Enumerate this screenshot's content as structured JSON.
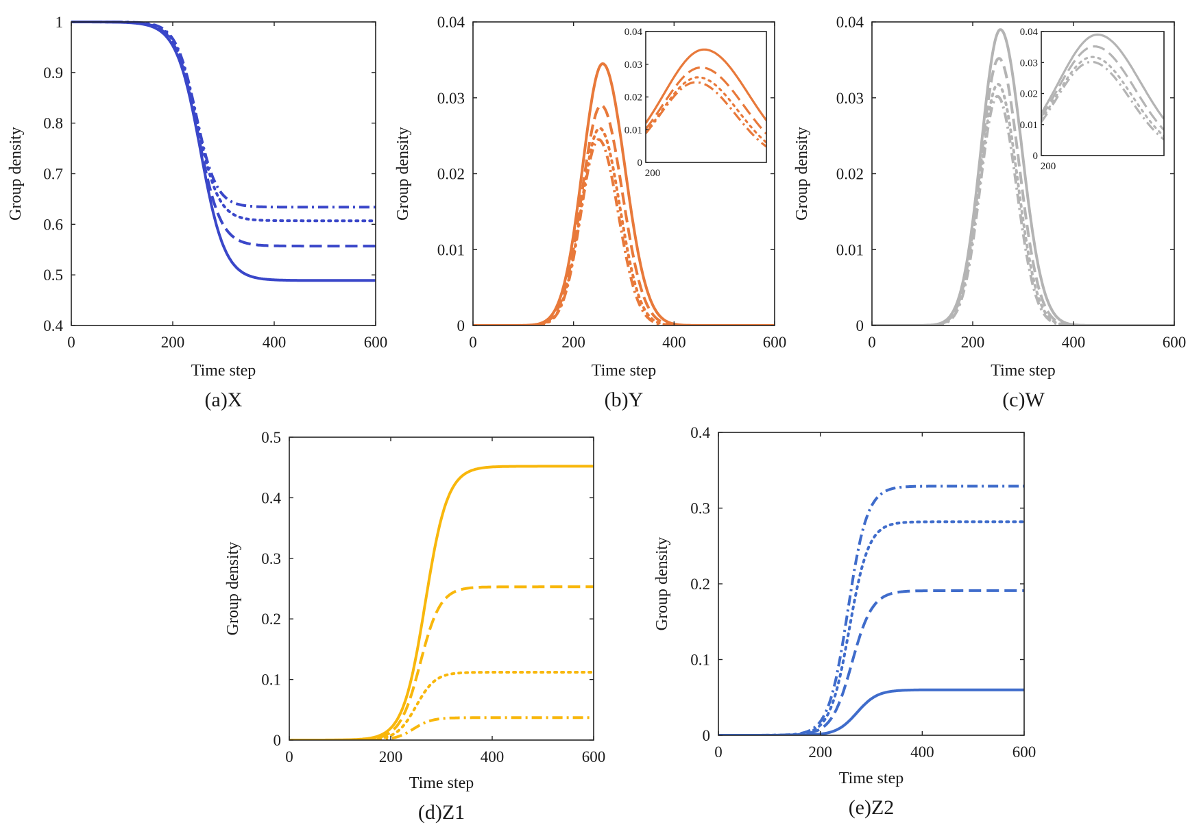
{
  "chart_data": [
    {
      "type": "line",
      "id": "a",
      "caption": "(a)X",
      "xlabel": "Time step",
      "ylabel": "Group density",
      "xlim": [
        0,
        600
      ],
      "ylim": [
        0.4,
        1.0
      ],
      "xticks": [
        "0",
        "200",
        "400",
        "600"
      ],
      "yticks": [
        "0.4",
        "0.5",
        "0.6",
        "0.7",
        "0.8",
        "0.9",
        "1"
      ],
      "color": "#3a47c9",
      "series": [
        {
          "name": "solid",
          "style": "solid",
          "kind": "decreasing",
          "start": 1.0,
          "final": 0.489,
          "midpoint": 255,
          "width": 24
        },
        {
          "name": "dashed",
          "style": "dashed",
          "kind": "decreasing",
          "start": 1.0,
          "final": 0.557,
          "midpoint": 250,
          "width": 22
        },
        {
          "name": "dotted",
          "style": "dotted",
          "kind": "decreasing",
          "start": 1.0,
          "final": 0.607,
          "midpoint": 248,
          "width": 21
        },
        {
          "name": "dashdot",
          "style": "dashdot",
          "kind": "decreasing",
          "start": 1.0,
          "final": 0.634,
          "midpoint": 246,
          "width": 20
        }
      ]
    },
    {
      "type": "line",
      "id": "b",
      "caption": "(b)Y",
      "xlabel": "Time step",
      "ylabel": "Group density",
      "xlim": [
        0,
        600
      ],
      "ylim": [
        0,
        0.04
      ],
      "xticks": [
        "0",
        "200",
        "400",
        "600"
      ],
      "yticks": [
        "0",
        "0.01",
        "0.02",
        "0.03",
        "0.04"
      ],
      "color": "#e8793a",
      "series": [
        {
          "name": "solid",
          "style": "solid",
          "kind": "peak",
          "peak": 0.0345,
          "at": 258,
          "width": 42
        },
        {
          "name": "dashed",
          "style": "dashed",
          "kind": "peak",
          "peak": 0.029,
          "at": 255,
          "width": 40
        },
        {
          "name": "dotted",
          "style": "dotted",
          "kind": "peak",
          "peak": 0.026,
          "at": 252,
          "width": 38
        },
        {
          "name": "dashdot",
          "style": "dashdot",
          "kind": "peak",
          "peak": 0.0245,
          "at": 250,
          "width": 37
        }
      ],
      "inset": {
        "xlim": [
          200,
          320
        ],
        "ylim": [
          0,
          0.04
        ],
        "xticks": [
          "200"
        ],
        "yticks": [
          "0",
          "0.01",
          "0.02",
          "0.03",
          "0.04"
        ]
      }
    },
    {
      "type": "line",
      "id": "c",
      "caption": "(c)W",
      "xlabel": "Time step",
      "ylabel": "Group density",
      "xlim": [
        0,
        600
      ],
      "ylim": [
        0,
        0.04
      ],
      "xticks": [
        "0",
        "200",
        "400",
        "600"
      ],
      "yticks": [
        "0",
        "0.01",
        "0.02",
        "0.03",
        "0.04"
      ],
      "color": "#b4b4b4",
      "series": [
        {
          "name": "solid",
          "style": "solid",
          "kind": "peak",
          "peak": 0.039,
          "at": 255,
          "width": 40
        },
        {
          "name": "dashed",
          "style": "dashed",
          "kind": "peak",
          "peak": 0.0352,
          "at": 252,
          "width": 38
        },
        {
          "name": "dotted",
          "style": "dotted",
          "kind": "peak",
          "peak": 0.0318,
          "at": 250,
          "width": 37
        },
        {
          "name": "dashdot",
          "style": "dashdot",
          "kind": "peak",
          "peak": 0.0302,
          "at": 249,
          "width": 36
        }
      ],
      "inset": {
        "xlim": [
          200,
          320
        ],
        "ylim": [
          0,
          0.04
        ],
        "xticks": [
          "200"
        ],
        "yticks": [
          "0",
          "0.01",
          "0.02",
          "0.03",
          "0.04"
        ]
      }
    },
    {
      "type": "line",
      "id": "d",
      "caption": "(d)Z1",
      "xlabel": "Time step",
      "ylabel": "Group density",
      "xlim": [
        0,
        600
      ],
      "ylim": [
        0,
        0.5
      ],
      "xticks": [
        "0",
        "200",
        "400",
        "600"
      ],
      "yticks": [
        "0",
        "0.1",
        "0.2",
        "0.3",
        "0.4",
        "0.5"
      ],
      "color": "#f8b70c",
      "series": [
        {
          "name": "solid",
          "style": "solid",
          "kind": "increasing",
          "final": 0.452,
          "midpoint": 268,
          "width": 22
        },
        {
          "name": "dashed",
          "style": "dashed",
          "kind": "increasing",
          "final": 0.253,
          "midpoint": 258,
          "width": 20
        },
        {
          "name": "dotted",
          "style": "dotted",
          "kind": "increasing",
          "final": 0.112,
          "midpoint": 250,
          "width": 19
        },
        {
          "name": "dashdot",
          "style": "dashdot",
          "kind": "increasing",
          "final": 0.037,
          "midpoint": 245,
          "width": 18
        }
      ]
    },
    {
      "type": "line",
      "id": "e",
      "caption": "(e)Z2",
      "xlabel": "Time step",
      "ylabel": "Group density",
      "xlim": [
        0,
        600
      ],
      "ylim": [
        0,
        0.4
      ],
      "xticks": [
        "0",
        "200",
        "400",
        "600"
      ],
      "yticks": [
        "0",
        "0.1",
        "0.2",
        "0.3",
        "0.4"
      ],
      "color": "#3f6ccb",
      "series": [
        {
          "name": "solid",
          "style": "solid",
          "kind": "increasing",
          "final": 0.06,
          "midpoint": 272,
          "width": 20
        },
        {
          "name": "dashed",
          "style": "dashed",
          "kind": "increasing",
          "final": 0.191,
          "midpoint": 262,
          "width": 20
        },
        {
          "name": "dotted",
          "style": "dotted",
          "kind": "increasing",
          "final": 0.282,
          "midpoint": 257,
          "width": 19
        },
        {
          "name": "dashdot",
          "style": "dashdot",
          "kind": "increasing",
          "final": 0.329,
          "midpoint": 254,
          "width": 19
        }
      ]
    }
  ]
}
